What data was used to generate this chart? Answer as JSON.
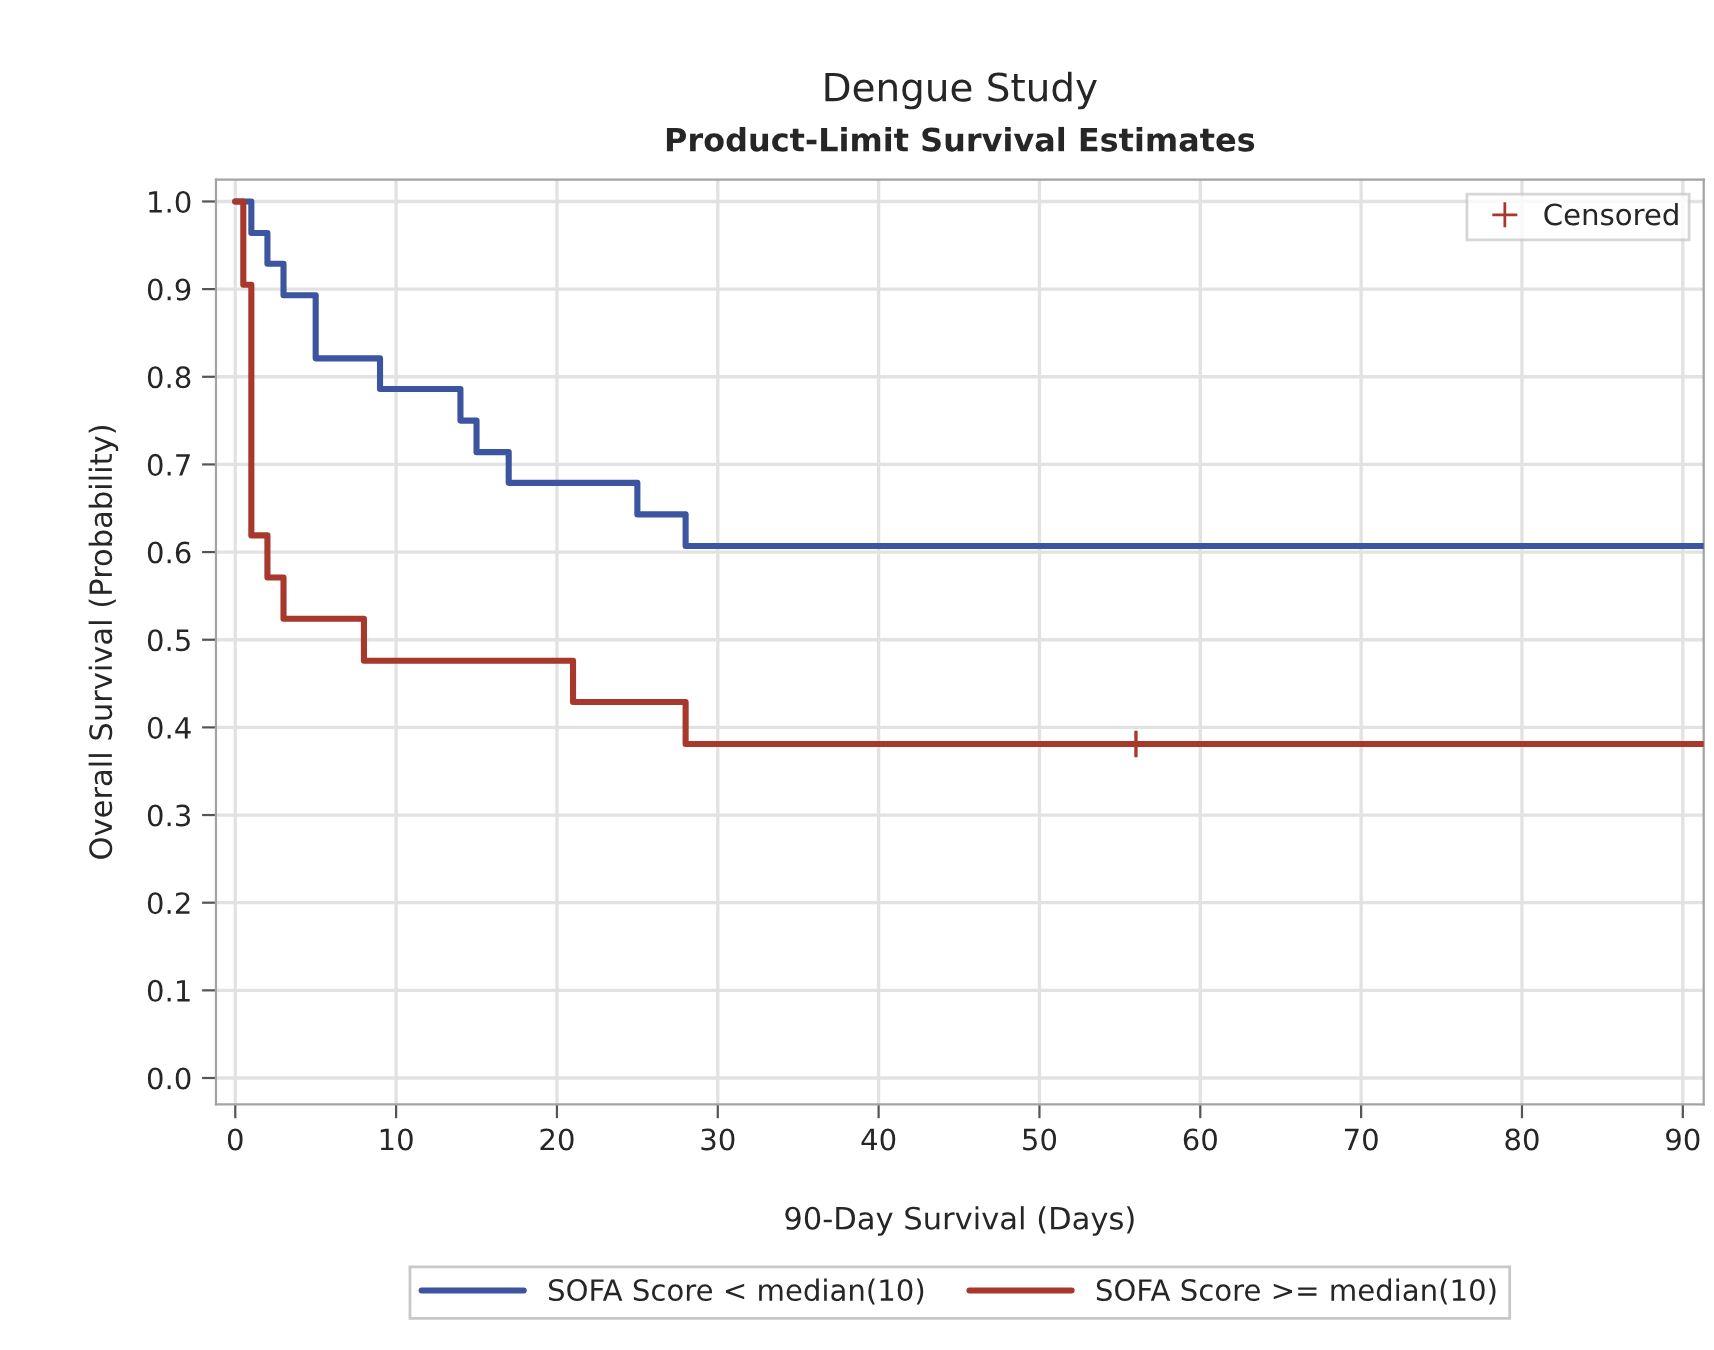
{
  "chart_data": {
    "type": "step",
    "title": "Dengue Study",
    "subtitle": "Product-Limit Survival Estimates",
    "xlabel": "90-Day Survival (Days)",
    "ylabel": "Overall Survival (Probability)",
    "series": [
      {
        "name": "SOFA Score < median(10)",
        "color": "#3c55a0",
        "x": [
          0,
          1,
          2,
          3,
          5,
          9,
          14,
          15,
          17,
          25,
          28,
          91.3
        ],
        "values": [
          1.0,
          0.964,
          0.929,
          0.893,
          0.821,
          0.786,
          0.75,
          0.714,
          0.679,
          0.643,
          0.607,
          0.607
        ]
      },
      {
        "name": "SOFA Score >= median(10)",
        "color": "#a8382b",
        "x": [
          0,
          0.5,
          1,
          2,
          3,
          8,
          21,
          28,
          91.3
        ],
        "values": [
          1.0,
          0.905,
          0.619,
          0.571,
          0.524,
          0.476,
          0.429,
          0.381,
          0.381
        ]
      },
      {
        "name": "Censored",
        "type": "scatter",
        "marker": "cross",
        "color": "#a8382b",
        "x": [
          56
        ],
        "values": [
          0.381
        ]
      }
    ],
    "xlim": [
      -1.2,
      91.3
    ],
    "ylim": [
      -0.03,
      1.025
    ],
    "xticks": [
      0,
      10,
      20,
      30,
      40,
      50,
      60,
      70,
      80,
      90
    ],
    "yticks": [
      {
        "value": 0,
        "label": "0.0"
      },
      0.1,
      0.2,
      0.3,
      0.4,
      0.5,
      0.6,
      0.7,
      0.8,
      0.9,
      {
        "value": 1,
        "label": "1.0"
      }
    ],
    "grid": true,
    "legend": "bottom",
    "line_style": "solid"
  }
}
